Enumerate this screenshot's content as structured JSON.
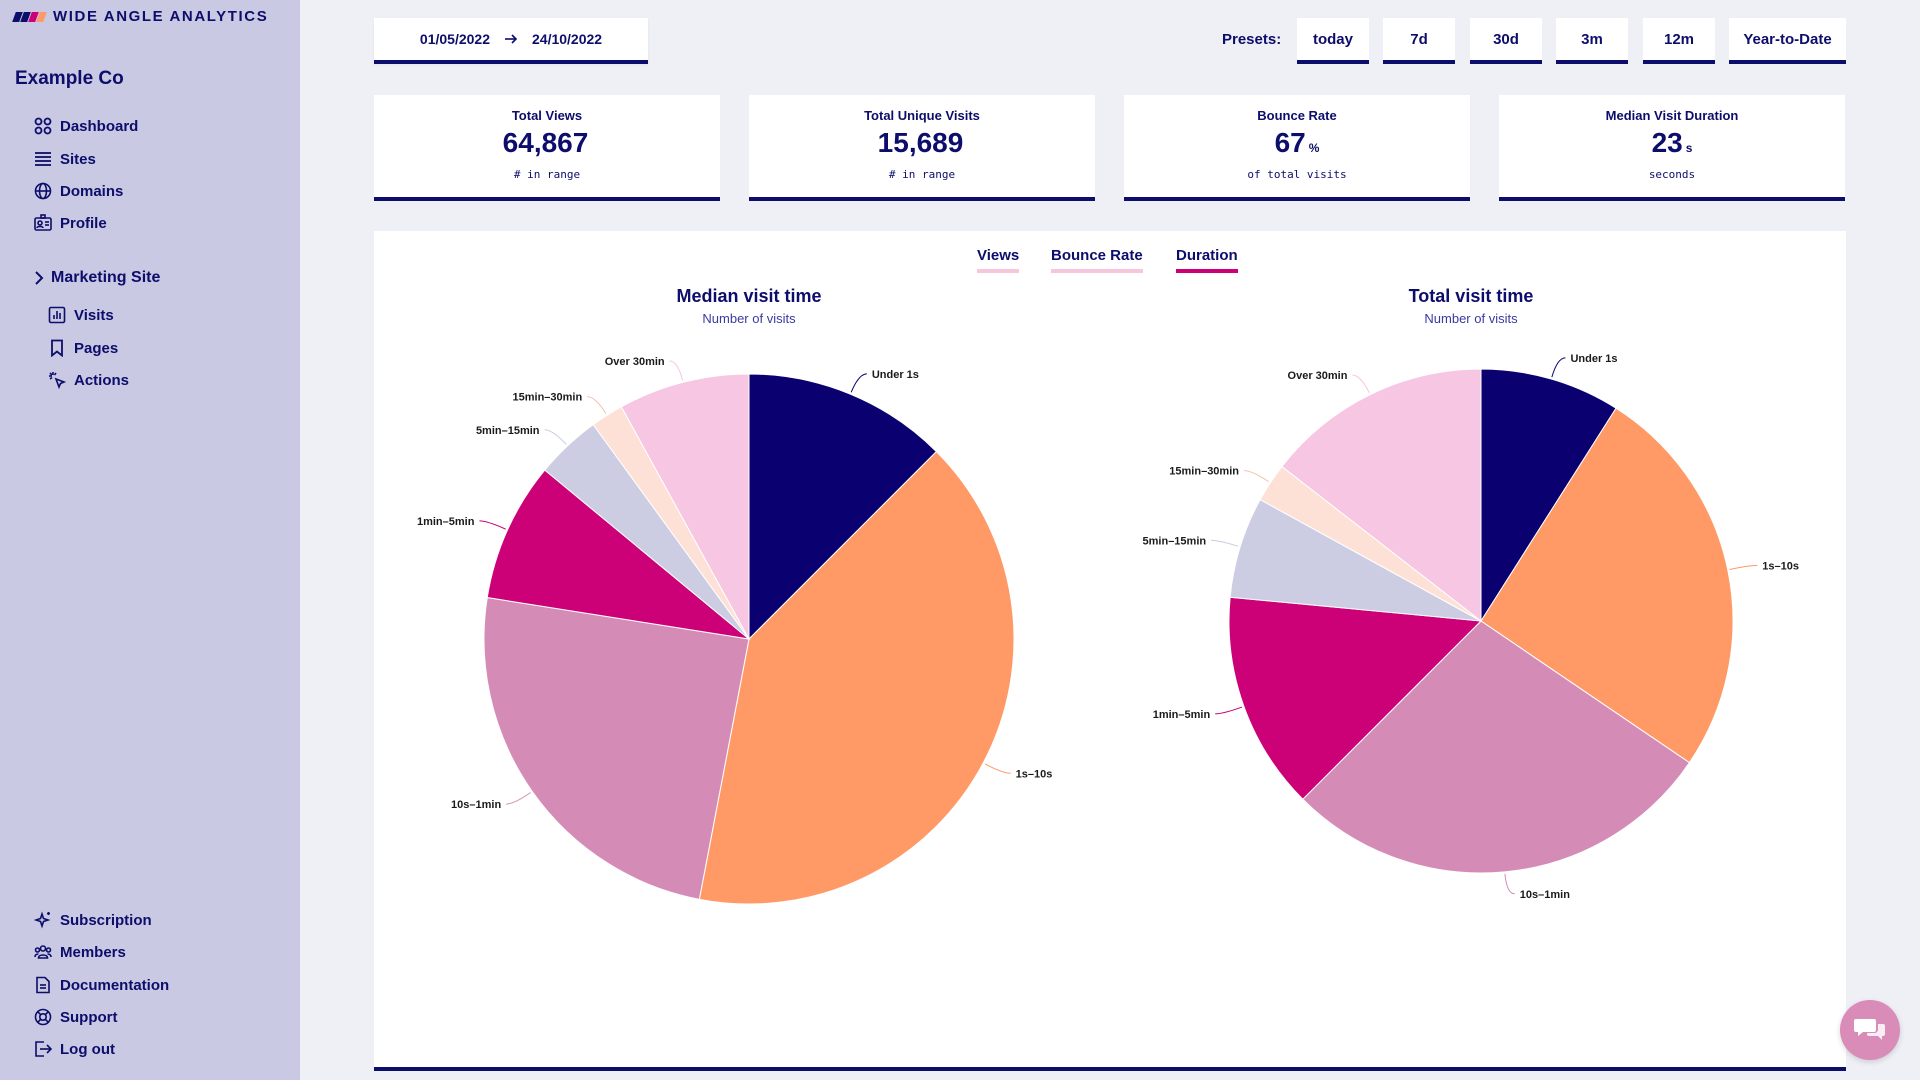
{
  "brand": {
    "name": "Wide Angle Analytics",
    "colors": {
      "navy": "#0d0d6b",
      "sidebar": "#c9c9e3",
      "accent": "#cc0077",
      "background": "#efeff6"
    }
  },
  "sidebar": {
    "org": "Example Co",
    "nav": [
      {
        "label": "Dashboard",
        "icon": "dashboard-grid-icon"
      },
      {
        "label": "Sites",
        "icon": "list-icon"
      },
      {
        "label": "Domains",
        "icon": "globe-icon"
      },
      {
        "label": "Profile",
        "icon": "id-card-icon"
      }
    ],
    "site": {
      "label": "Marketing Site",
      "items": [
        {
          "label": "Visits",
          "icon": "bar-chart-icon"
        },
        {
          "label": "Pages",
          "icon": "bookmark-icon"
        },
        {
          "label": "Actions",
          "icon": "cursor-click-icon"
        }
      ]
    },
    "bottom": [
      {
        "label": "Subscription",
        "icon": "sparkles-icon"
      },
      {
        "label": "Members",
        "icon": "users-icon"
      },
      {
        "label": "Documentation",
        "icon": "document-icon"
      },
      {
        "label": "Support",
        "icon": "lifebuoy-icon"
      },
      {
        "label": "Log out",
        "icon": "logout-icon"
      }
    ]
  },
  "toolbar": {
    "date_from": "01/05/2022",
    "date_to": "24/10/2022",
    "presets_label": "Presets:",
    "presets": [
      "today",
      "7d",
      "30d",
      "3m",
      "12m",
      "Year-to-Date"
    ]
  },
  "kpis": [
    {
      "title": "Total Views",
      "value": "64,867",
      "unit": "",
      "sub": "# in range"
    },
    {
      "title": "Total Unique Visits",
      "value": "15,689",
      "unit": "",
      "sub": "# in range"
    },
    {
      "title": "Bounce Rate",
      "value": "67",
      "unit": "%",
      "sub": "of total visits"
    },
    {
      "title": "Median Visit Duration",
      "value": "23",
      "unit": "s",
      "sub": "seconds"
    }
  ],
  "tabs": [
    {
      "label": "Views",
      "active": false
    },
    {
      "label": "Bounce Rate",
      "active": false
    },
    {
      "label": "Duration",
      "active": true
    }
  ],
  "chart_data": [
    {
      "type": "pie",
      "title": "Median visit time",
      "subtitle": "Number of visits",
      "categories": [
        "Under 1s",
        "1s–10s",
        "10s–1min",
        "1min–5min",
        "5min–15min",
        "15min–30min",
        "Over 30min"
      ],
      "values": [
        12.5,
        40.5,
        24.5,
        8.5,
        4.0,
        2.0,
        8.0
      ],
      "colors": [
        "#0a0070",
        "#ff9966",
        "#d48cb6",
        "#cc0077",
        "#cccce3",
        "#fde1d6",
        "#f6c6e2"
      ]
    },
    {
      "type": "pie",
      "title": "Total visit time",
      "subtitle": "Number of visits",
      "categories": [
        "Under 1s",
        "1s–10s",
        "10s–1min",
        "1min–5min",
        "5min–15min",
        "15min–30min",
        "Over 30min"
      ],
      "values": [
        9.0,
        25.5,
        28.0,
        14.0,
        6.5,
        2.5,
        14.5
      ],
      "colors": [
        "#0a0070",
        "#ff9966",
        "#d48cb6",
        "#cc0077",
        "#cccce3",
        "#fde1d6",
        "#f6c6e2"
      ]
    }
  ]
}
